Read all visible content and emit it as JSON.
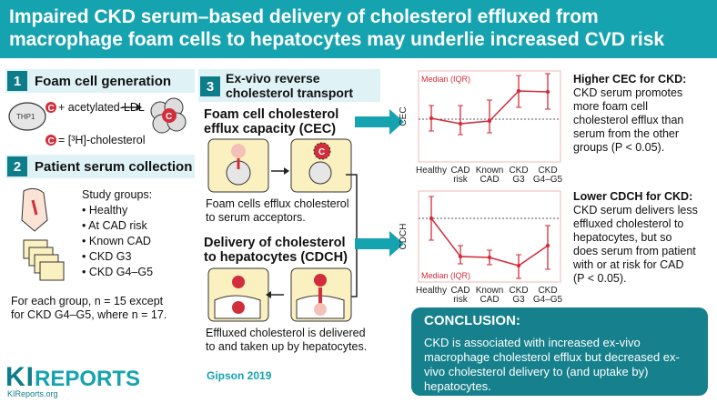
{
  "title": "Impaired CKD serum–based delivery of cholesterol effluxed from macrophage foam cells to hepatocytes may underlie increased CVD risk",
  "sections": {
    "s1": {
      "num": "1",
      "title": "Foam cell generation",
      "thp1": "THP1",
      "acetylated": "+ acetylated-LDL",
      "c_letter": "C",
      "legend": "= [³H]-cholesterol"
    },
    "s2": {
      "num": "2",
      "title": "Patient serum collection",
      "study_groups": "Study groups:",
      "groups": [
        "Healthy",
        "At CAD risk",
        "Known CAD",
        "CKD G3",
        "CKD G4–G5"
      ],
      "n_note_1": "For each group, n = 15 except",
      "n_note_2": "for CKD G4–G5, where n = 17."
    },
    "s3": {
      "num": "3",
      "title_1": "Ex-vivo reverse",
      "title_2": "cholesterol transport",
      "cec_title_1": "Foam cell cholesterol",
      "cec_title_2": "efflux capacity (CEC)",
      "cec_desc_1": "Foam cells efflux cholesterol",
      "cec_desc_2": "to serum acceptors.",
      "cdch_title_1": "Delivery of cholesterol",
      "cdch_title_2": "to hepatocytes (CDCH)",
      "cdch_desc_1": "Effluxed cholesterol is delivered",
      "cdch_desc_2": "to and taken up by hepatocytes."
    }
  },
  "chart_data": [
    {
      "type": "line",
      "ylabel": "CEC",
      "annotation": "Median (IQR)",
      "categories": [
        "Healthy",
        "CAD risk",
        "Known CAD",
        "CKD G3",
        "CKD G4–G5"
      ],
      "values": [
        0.48,
        0.42,
        0.45,
        0.78,
        0.77
      ],
      "lower": [
        0.34,
        0.3,
        0.32,
        0.6,
        0.58
      ],
      "upper": [
        0.62,
        0.62,
        0.68,
        0.95,
        0.97
      ],
      "reference": 0.47,
      "ylim": [
        0,
        1
      ]
    },
    {
      "type": "line",
      "ylabel": "CDCH",
      "annotation": "Median (IQR)",
      "categories": [
        "Healthy",
        "CAD risk",
        "Known CAD",
        "CKD G3",
        "CKD G4–G5"
      ],
      "values": [
        0.7,
        0.28,
        0.27,
        0.18,
        0.4
      ],
      "lower": [
        0.46,
        0.2,
        0.19,
        0.04,
        0.14
      ],
      "upper": [
        0.94,
        0.4,
        0.35,
        0.3,
        0.62
      ],
      "reference": 0.7,
      "ylim": [
        0,
        1
      ]
    }
  ],
  "findings": {
    "higher_title": "Higher CEC for CKD:",
    "higher_lines": [
      "CKD serum promotes",
      "more foam cell",
      "cholesterol efflux than",
      "serum from the other",
      "groups (P < 0.05)."
    ],
    "lower_title": "Lower CDCH for CKD:",
    "lower_lines": [
      "CKD serum delivers less",
      "effluxed cholesterol to",
      "hepatocytes, but so",
      "does serum from patient",
      "with or at risk for CAD",
      "(P < 0.05)."
    ]
  },
  "conclusion": {
    "title": "CONCLUSION:",
    "body": "CKD is associated with increased ex-vivo macrophage cholesterol efflux but decreased ex-vivo cholesterol delivery to (and uptake by) hepatocytes."
  },
  "footer": {
    "logo_ki": "KI",
    "logo_reports": "REPORTS",
    "logo_url": "KIReports.org",
    "citation": "Gipson 2019"
  },
  "colors": {
    "teal": "#16a3b0",
    "dark_teal": "#0e7d8a",
    "red": "#d22d3a",
    "cream": "#fbf0c0"
  }
}
